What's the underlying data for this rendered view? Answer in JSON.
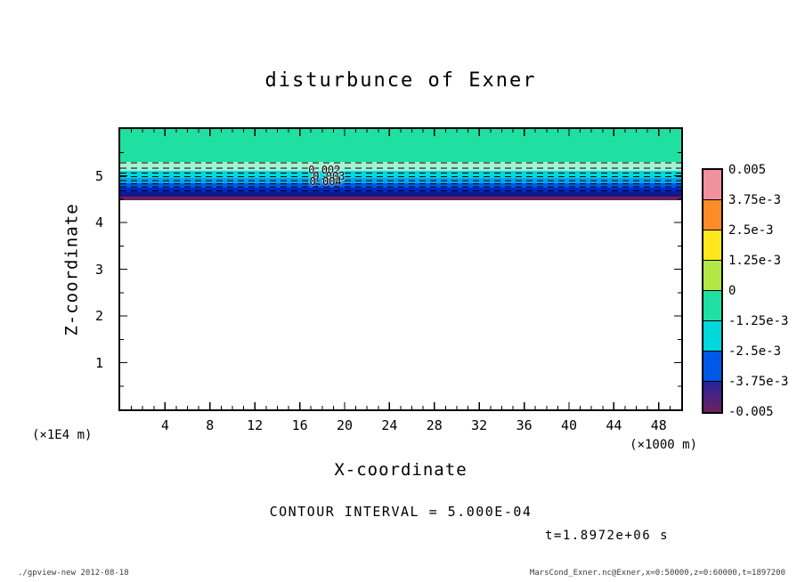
{
  "title": "disturbunce of Exner",
  "axes": {
    "x": {
      "label": "X-coordinate",
      "unit": "(×1000 m)"
    },
    "z": {
      "label": "Z-coordinate",
      "unit": "(×1E4 m)"
    }
  },
  "notes": {
    "contour_interval": "CONTOUR INTERVAL = 5.000E-04",
    "time": "t=1.8972e+06 s"
  },
  "footer": {
    "left": "./gpview-new  2012-08-18",
    "right": "MarsCond_Exner.nc@Exner,x=0:50000,z=0:60000,t=1897200"
  },
  "colorbar": {
    "labels": [
      "0.005",
      "3.75e-3",
      "2.5e-3",
      "1.25e-3",
      "0",
      "-1.25e-3",
      "-2.5e-3",
      "-3.75e-3",
      "-0.005"
    ],
    "cells": [
      {
        "color": "#f2919e"
      },
      {
        "color": "#fb8c28"
      },
      {
        "color": "#ffe81e"
      },
      {
        "color": "#b2e846"
      },
      {
        "color": "#1fe0a0"
      },
      {
        "color": "#00d8dc"
      },
      {
        "color": "#0058e8"
      },
      {
        "color": "#28249c",
        "color2": "#6e2060"
      }
    ]
  },
  "chart_data": {
    "type": "heatmap",
    "title": "disturbunce of Exner",
    "xlabel": "X-coordinate (×1000 m)",
    "ylabel": "Z-coordinate (×1E4 m)",
    "xlim": [
      0,
      50
    ],
    "ylim": [
      0,
      6
    ],
    "contour_interval": 0.0005,
    "colorbar_levels": [
      0.005,
      0.00375,
      0.0025,
      0.00125,
      0,
      -0.00125,
      -0.0025,
      -0.00375,
      -0.005
    ],
    "bands": [
      {
        "z_top": 6.0,
        "z_bottom": 5.3,
        "value": -0.0006,
        "color": "#1fe0a0"
      },
      {
        "z_top": 5.3,
        "z_bottom": 5.1,
        "value": -0.0011,
        "color": "#a4f2d2"
      },
      {
        "z_top": 5.1,
        "z_bottom": 4.95,
        "value": -0.0017,
        "color": "#00d8dc"
      },
      {
        "z_top": 4.95,
        "z_bottom": 4.84,
        "value": -0.0022,
        "color": "#00a4ee"
      },
      {
        "z_top": 4.84,
        "z_bottom": 4.74,
        "value": -0.0028,
        "color": "#0058e8"
      },
      {
        "z_top": 4.74,
        "z_bottom": 4.64,
        "value": -0.0034,
        "color": "#0028c0"
      },
      {
        "z_top": 4.64,
        "z_bottom": 4.55,
        "value": -0.004,
        "color": "#14188c"
      },
      {
        "z_top": 4.55,
        "z_bottom": 4.47,
        "value": -0.0046,
        "color": "#6e2060"
      }
    ],
    "contour_lines": [
      {
        "z": 5.28,
        "value": -0.001
      },
      {
        "z": 5.16,
        "value": -0.0015
      },
      {
        "z": 5.06,
        "value": -0.002
      },
      {
        "z": 4.98,
        "value": -0.0025
      },
      {
        "z": 4.9,
        "value": -0.003
      },
      {
        "z": 4.83,
        "value": -0.0035
      },
      {
        "z": 4.76,
        "value": -0.004
      },
      {
        "z": 4.68,
        "value": -0.0045
      }
    ],
    "contour_labels": [
      {
        "text": "0.002",
        "x": 18.2,
        "z": 5.12
      },
      {
        "text": "0.003",
        "x": 18.6,
        "z": 5.0
      },
      {
        "text": "0.004",
        "x": 18.3,
        "z": 4.87
      }
    ],
    "x_ticks": [
      4,
      8,
      12,
      16,
      20,
      24,
      28,
      32,
      36,
      40,
      44,
      48
    ],
    "z_ticks": [
      1,
      2,
      3,
      4,
      5
    ],
    "x_minor_step": 1,
    "z_minor_step": 0.5
  }
}
